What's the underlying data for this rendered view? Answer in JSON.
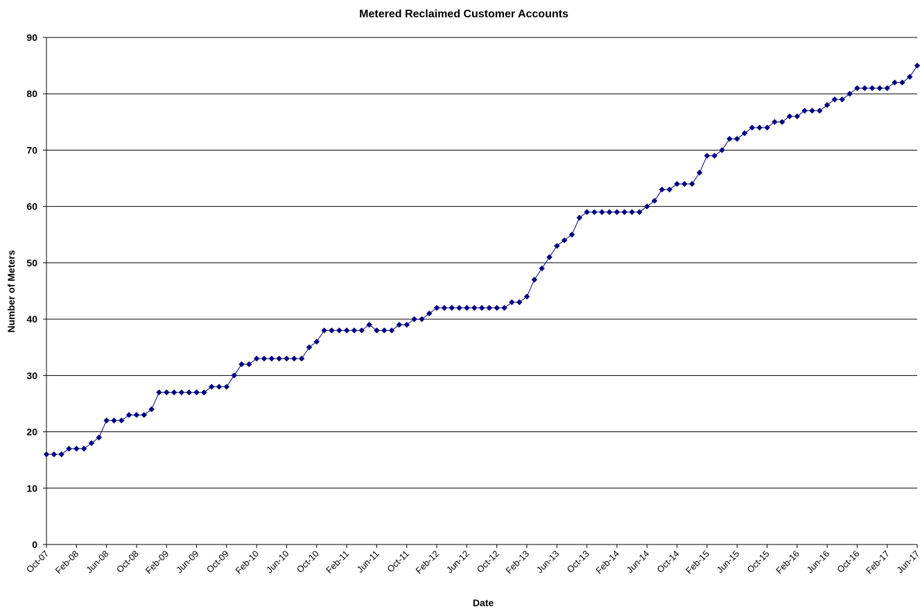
{
  "chart_data": {
    "type": "line",
    "title": "Metered Reclaimed Customer Accounts",
    "xlabel": "Date",
    "ylabel": "Number of Meters",
    "ylim": [
      0,
      90
    ],
    "y_ticks": [
      0,
      10,
      20,
      30,
      40,
      50,
      60,
      70,
      80,
      90
    ],
    "x_range": [
      "Oct-07",
      "Jun-17"
    ],
    "x_ticks": [
      "Oct-07",
      "Feb-08",
      "Jun-08",
      "Oct-08",
      "Feb-09",
      "Jun-09",
      "Oct-09",
      "Feb-10",
      "Jun-10",
      "Oct-10",
      "Feb-11",
      "Jun-11",
      "Oct-11",
      "Feb-12",
      "Jun-12",
      "Oct-12",
      "Feb-13",
      "Jun-13",
      "Oct-13",
      "Feb-14",
      "Jun-14",
      "Oct-14",
      "Feb-15",
      "Jun-15",
      "Oct-15",
      "Feb-16",
      "Jun-16",
      "Oct-16",
      "Feb-17",
      "Jun-17"
    ],
    "grid": "horizontal",
    "legend": "none",
    "series_color": "#000080",
    "marker": "diamond",
    "series": [
      {
        "start": "Oct-07",
        "frequency": "monthly",
        "values": [
          16,
          16,
          16,
          17,
          17,
          17,
          18,
          19,
          22,
          22,
          22,
          23,
          23,
          23,
          24,
          27,
          27,
          27,
          27,
          27,
          27,
          27,
          28,
          28,
          28,
          30,
          32,
          32,
          33,
          33,
          33,
          33,
          33,
          33,
          33,
          35,
          36,
          38,
          38,
          38,
          38,
          38,
          38,
          39,
          38,
          38,
          38,
          39,
          39,
          40,
          40,
          41,
          42,
          42,
          42,
          42,
          42,
          42,
          42,
          42,
          42,
          42,
          43,
          43,
          44,
          47,
          49,
          51,
          53,
          54,
          55,
          58,
          59,
          59,
          59,
          59,
          59,
          59,
          59,
          59,
          60,
          61,
          63,
          63,
          64,
          64,
          64,
          66,
          69,
          69,
          70,
          72,
          72,
          73,
          74,
          74,
          74,
          75,
          75,
          76,
          76,
          77,
          77,
          77,
          78,
          79,
          79,
          80,
          81,
          81,
          81,
          81,
          81,
          82,
          82,
          83,
          85
        ]
      }
    ]
  }
}
